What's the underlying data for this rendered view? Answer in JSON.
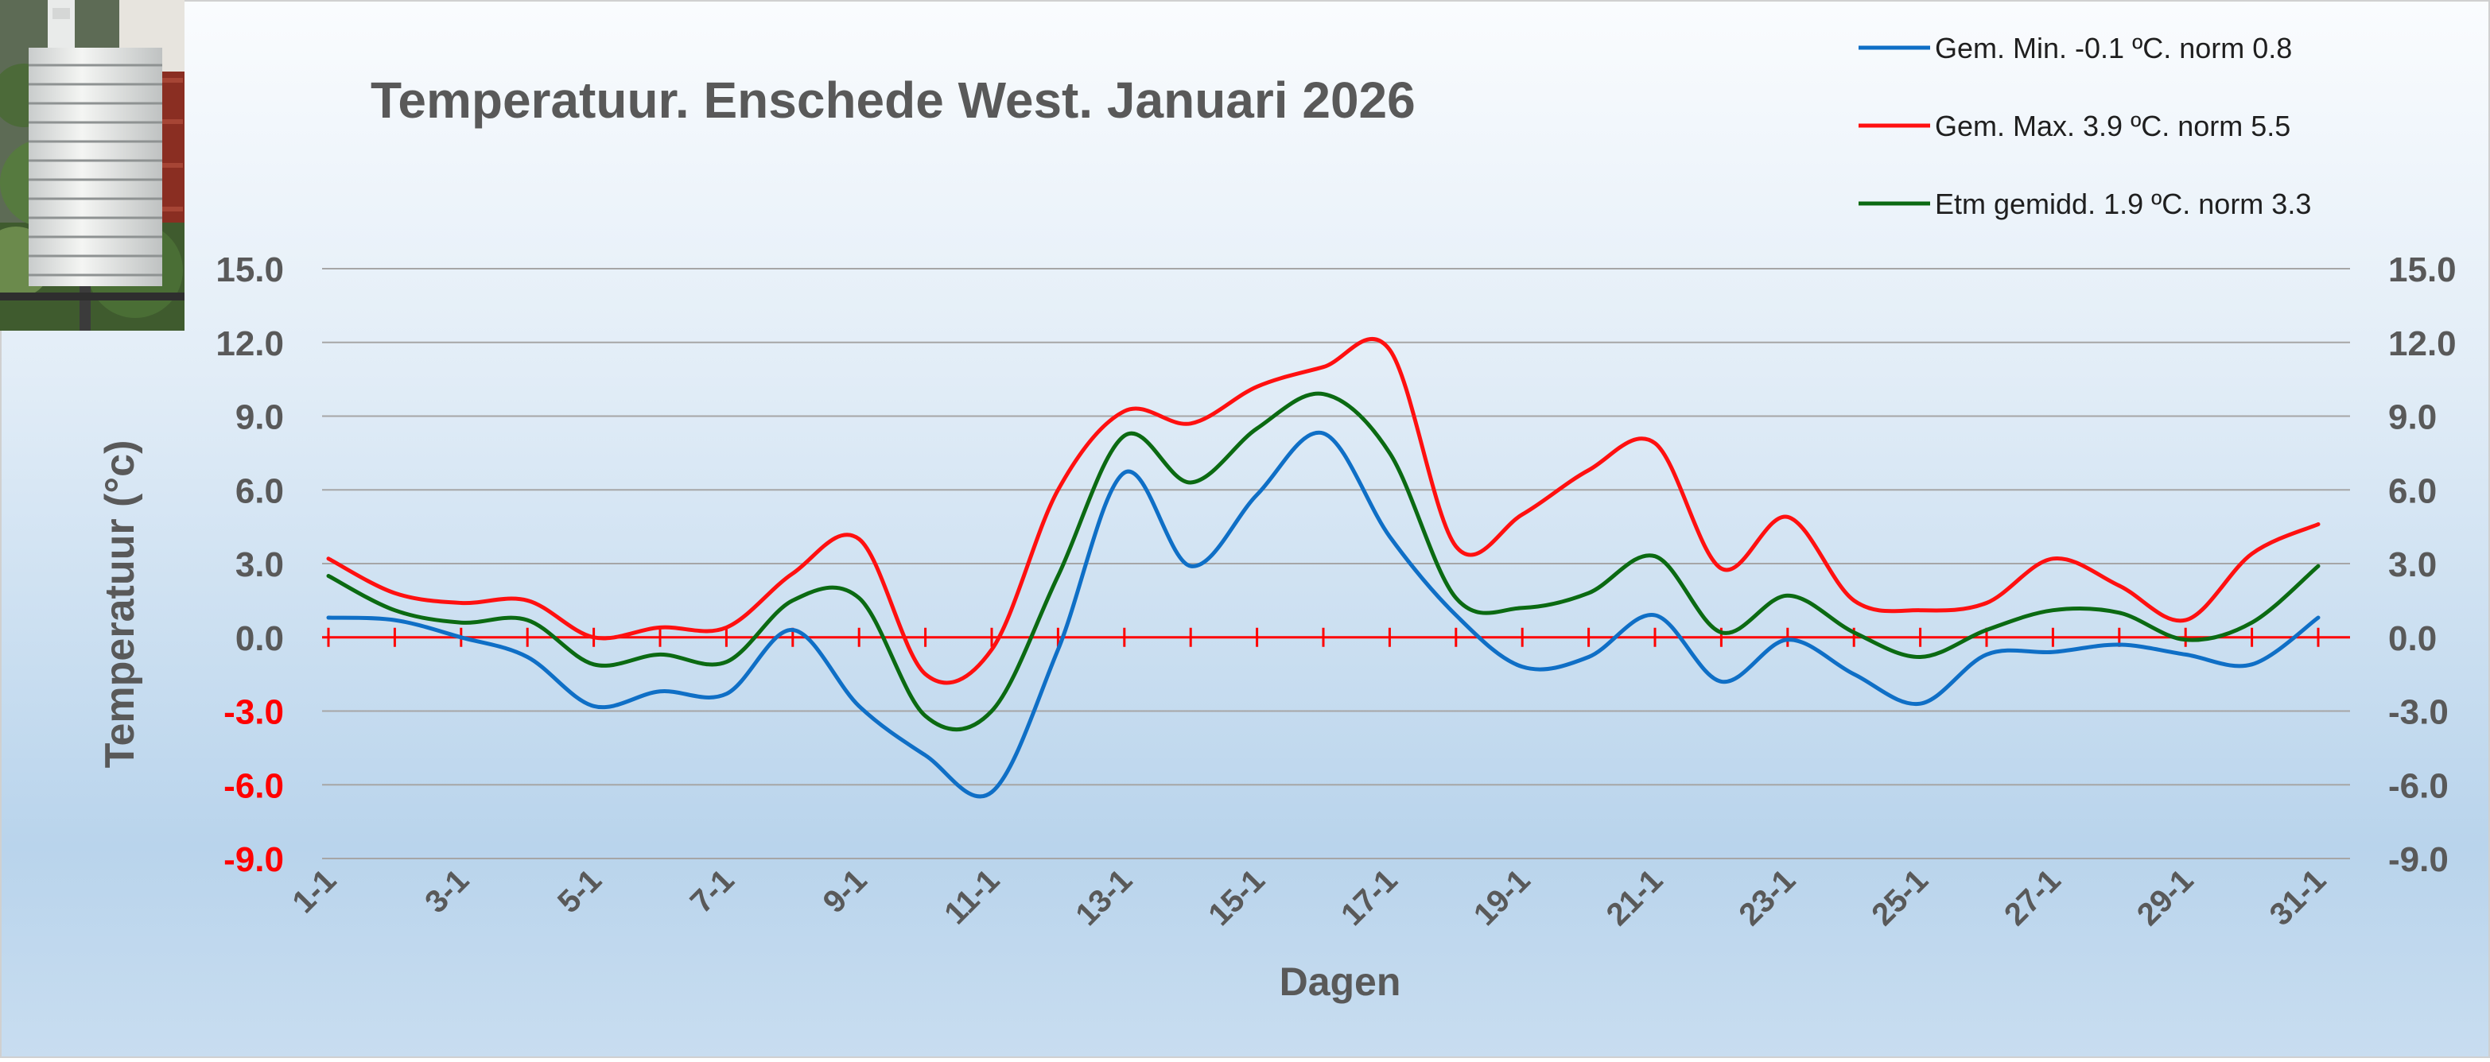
{
  "colors": {
    "min": "#0F6FC6",
    "max": "#FF1010",
    "avg": "#0B6A12",
    "grid": "#A6A6A6",
    "text": "#595959",
    "negative": "#FF0000",
    "zero_line": "#FF0000"
  },
  "photo": {
    "icon": "weather-screen-photo"
  },
  "chart_data": {
    "type": "line",
    "title": "Temperatuur. Enschede West. Januari 2026",
    "xlabel": "Dagen",
    "ylabel": "Temperatuur (°c)",
    "ylim": [
      -9,
      15
    ],
    "y_ticks": [
      15,
      12,
      9,
      6,
      3,
      0,
      -3,
      -6,
      -9
    ],
    "y_tick_labels": [
      "15.0",
      "12.0",
      "9.0",
      "6.0",
      "3.0",
      "0.0",
      "-3.0",
      "-6.0",
      "-9.0"
    ],
    "grid": true,
    "legend_position": "top-right",
    "categories": [
      "1-1",
      "2-1",
      "3-1",
      "4-1",
      "5-1",
      "6-1",
      "7-1",
      "8-1",
      "9-1",
      "10-1",
      "11-1",
      "12-1",
      "13-1",
      "14-1",
      "15-1",
      "16-1",
      "17-1",
      "18-1",
      "19-1",
      "20-1",
      "21-1",
      "22-1",
      "23-1",
      "24-1",
      "25-1",
      "26-1",
      "27-1",
      "28-1",
      "29-1",
      "30-1",
      "31-1"
    ],
    "x_tick_labels": [
      "1-1",
      "3-1",
      "5-1",
      "7-1",
      "9-1",
      "11-1",
      "13-1",
      "15-1",
      "17-1",
      "19-1",
      "21-1",
      "23-1",
      "25-1",
      "27-1",
      "29-1",
      "31-1"
    ],
    "series": [
      {
        "key": "min",
        "name": "Gem. Min. -0.1  ºC. norm 0.8",
        "values": [
          0.8,
          0.7,
          0.0,
          -0.8,
          -2.8,
          -2.2,
          -2.3,
          0.3,
          -2.8,
          -4.8,
          -6.3,
          -0.5,
          6.7,
          2.9,
          5.8,
          8.3,
          4.1,
          0.9,
          -1.2,
          -0.8,
          0.9,
          -1.8,
          -0.1,
          -1.5,
          -2.7,
          -0.7,
          -0.6,
          -0.3,
          -0.7,
          -1.1,
          0.8
        ]
      },
      {
        "key": "max",
        "name": "Gem. Max. 3.9  ºC. norm 5.5",
        "values": [
          3.2,
          1.8,
          1.4,
          1.5,
          0.0,
          0.4,
          0.4,
          2.6,
          4.0,
          -1.5,
          -0.5,
          6.0,
          9.2,
          8.7,
          10.2,
          11.0,
          11.7,
          3.7,
          5.0,
          6.8,
          7.9,
          2.8,
          4.9,
          1.5,
          1.1,
          1.4,
          3.2,
          2.1,
          0.7,
          3.4,
          4.6
        ]
      },
      {
        "key": "avg",
        "name": "Etm gemidd. 1.9  ºC. norm 3.3",
        "values": [
          2.5,
          1.1,
          0.6,
          0.7,
          -1.1,
          -0.7,
          -1.0,
          1.5,
          1.6,
          -3.2,
          -3.0,
          2.5,
          8.2,
          6.3,
          8.5,
          9.9,
          7.5,
          1.6,
          1.2,
          1.8,
          3.3,
          0.2,
          1.7,
          0.2,
          -0.8,
          0.3,
          1.1,
          1.0,
          -0.1,
          0.6,
          2.9
        ]
      }
    ]
  }
}
